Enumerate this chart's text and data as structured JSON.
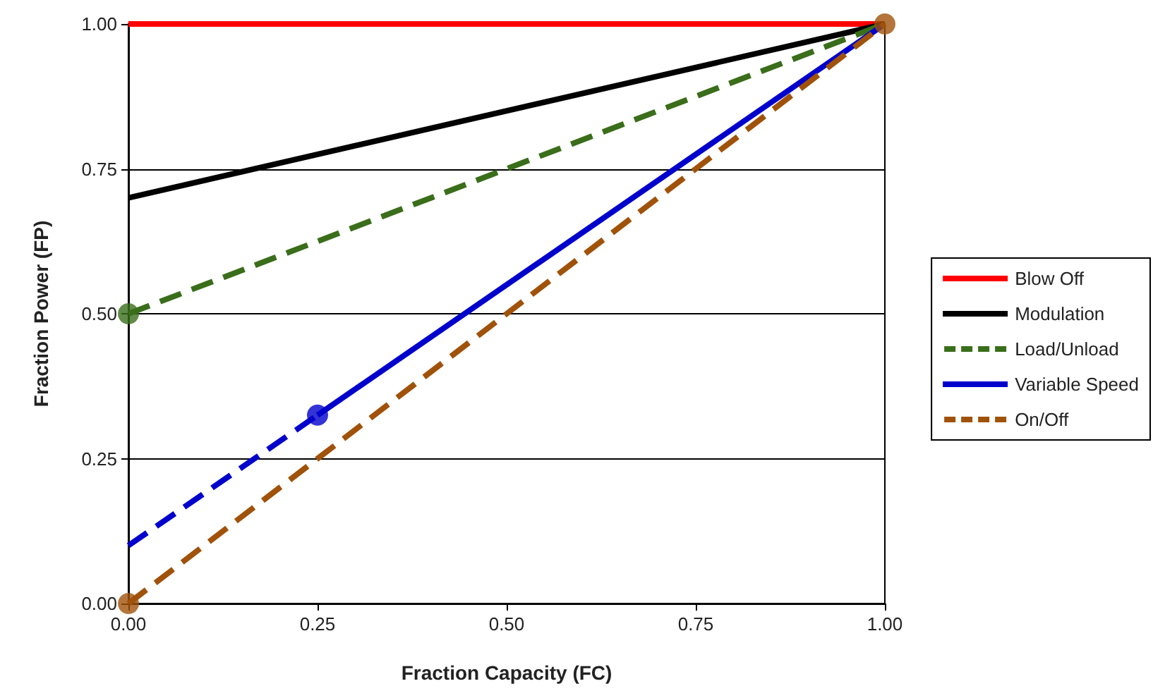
{
  "chart_data": {
    "type": "line",
    "xlabel": "Fraction Capacity (FC)",
    "ylabel": "Fraction Power (FP)",
    "xlim": [
      0,
      1
    ],
    "ylim": [
      0,
      1
    ],
    "xticks": [
      {
        "value": 0,
        "label": "0.00"
      },
      {
        "value": 0.25,
        "label": "0.25"
      },
      {
        "value": 0.5,
        "label": "0.50"
      },
      {
        "value": 0.75,
        "label": "0.75"
      },
      {
        "value": 1,
        "label": "1.00"
      }
    ],
    "yticks": [
      {
        "value": 0,
        "label": "0.00"
      },
      {
        "value": 0.25,
        "label": "0.25"
      },
      {
        "value": 0.5,
        "label": "0.50"
      },
      {
        "value": 0.75,
        "label": "0.75"
      },
      {
        "value": 1,
        "label": "1.00"
      }
    ],
    "grid": "y",
    "legend": "right",
    "marker": "none",
    "series": [
      {
        "name": "Blow Off",
        "color": "#ff0000",
        "x": [
          0,
          1
        ],
        "values": [
          1,
          1
        ],
        "line_style": "solid"
      },
      {
        "name": "Modulation",
        "color": "#000000",
        "x": [
          0,
          1
        ],
        "values": [
          0.7,
          1
        ],
        "line_style": "solid"
      },
      {
        "name": "Load/Unload",
        "color": "#3a6e1a",
        "x": [
          0,
          1
        ],
        "values": [
          0.5,
          1
        ],
        "line_style": "dashed"
      },
      {
        "name": "Variable Speed",
        "color": "#0000cc",
        "x": [
          0.25,
          1
        ],
        "values": [
          0.325,
          1
        ],
        "line_style": "solid"
      },
      {
        "color": "#0000cc",
        "x": [
          0,
          0.25
        ],
        "values": [
          0.1,
          0.325
        ],
        "line_style": "dashed"
      },
      {
        "name": "On/Off",
        "color": "#a0520a",
        "x": [
          0,
          1
        ],
        "values": [
          0,
          1
        ],
        "line_style": "dashed"
      },
      {
        "type": "scatter",
        "x": [
          0,
          0.25,
          0,
          1
        ],
        "values": [
          0.5,
          0.325,
          0,
          1
        ],
        "colors": [
          "#3a6e1a",
          "#0000cc",
          "#a0520a",
          "#a0520a"
        ],
        "marker": "circle"
      }
    ]
  }
}
